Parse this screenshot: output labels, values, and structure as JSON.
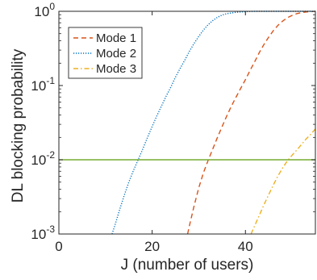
{
  "chart_data": {
    "type": "line",
    "title": "",
    "xlabel": "J (number of users)",
    "ylabel": "DL blocking probability",
    "x_scale": "linear",
    "y_scale": "log",
    "xlim": [
      0,
      55
    ],
    "ylim": [
      0.001,
      1
    ],
    "x_ticks": [
      0,
      20,
      40
    ],
    "x_tick_labels": [
      "0",
      "20",
      "40"
    ],
    "y_ticks": [
      0.001,
      0.01,
      0.1,
      1
    ],
    "y_tick_labels": [
      {
        "base": "10",
        "exp": "-3"
      },
      {
        "base": "10",
        "exp": "-2"
      },
      {
        "base": "10",
        "exp": "-1"
      },
      {
        "base": "10",
        "exp": "0"
      }
    ],
    "grid": false,
    "legend_position": "top-left",
    "series": [
      {
        "name": "Mode 1",
        "color": "#d95319",
        "style": "dashed",
        "x": [
          27.6,
          28,
          29,
          30,
          31,
          32,
          33,
          34,
          35,
          36,
          37,
          38,
          39,
          40,
          41,
          42,
          43,
          44,
          45,
          46,
          47,
          48,
          49,
          50,
          51,
          52,
          53,
          54,
          55
        ],
        "y": [
          0.001,
          0.0013,
          0.0024,
          0.0042,
          0.0067,
          0.0098,
          0.014,
          0.02,
          0.028,
          0.039,
          0.053,
          0.07,
          0.092,
          0.12,
          0.16,
          0.21,
          0.28,
          0.36,
          0.45,
          0.55,
          0.65,
          0.74,
          0.82,
          0.88,
          0.93,
          0.96,
          0.98,
          0.99,
          1.0
        ]
      },
      {
        "name": "Mode 2",
        "color": "#0072bd",
        "style": "dotted",
        "x": [
          11.4,
          12,
          13,
          14,
          15,
          16,
          17,
          18,
          19,
          20,
          21,
          22,
          23,
          24,
          25,
          26,
          27,
          28,
          29,
          30,
          31,
          32,
          33,
          34,
          35,
          36,
          38,
          40,
          42,
          44,
          55
        ],
        "y": [
          0.001,
          0.0013,
          0.0021,
          0.0033,
          0.005,
          0.0072,
          0.01,
          0.014,
          0.02,
          0.028,
          0.039,
          0.053,
          0.072,
          0.095,
          0.13,
          0.17,
          0.22,
          0.29,
          0.37,
          0.46,
          0.56,
          0.66,
          0.75,
          0.83,
          0.89,
          0.93,
          0.97,
          0.99,
          1.0,
          1.0,
          1.0
        ]
      },
      {
        "name": "Mode 3",
        "color": "#edb120",
        "style": "dashdot",
        "x": [
          41.2,
          42,
          43,
          44,
          45,
          46,
          47,
          48,
          49,
          50,
          51,
          52,
          53,
          54,
          55
        ],
        "y": [
          0.001,
          0.0013,
          0.0018,
          0.0025,
          0.0034,
          0.0046,
          0.0061,
          0.0078,
          0.0097,
          0.0115,
          0.0135,
          0.016,
          0.019,
          0.022,
          0.026
        ]
      },
      {
        "name": "",
        "color": "#77ac30",
        "style": "solid",
        "x": [
          0,
          55
        ],
        "y": [
          0.01,
          0.01
        ]
      }
    ]
  }
}
